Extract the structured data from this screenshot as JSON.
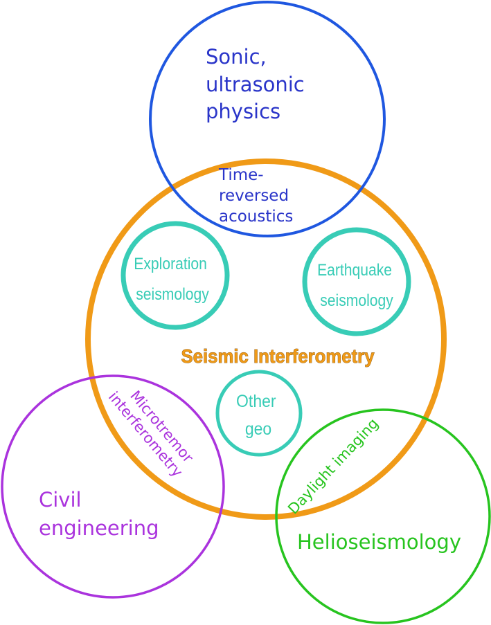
{
  "diagram": {
    "center": {
      "title": "Seismic Interferometry",
      "color": "#f09a17"
    },
    "sonic": {
      "lines": [
        "Sonic,",
        "ultrasonic",
        "physics"
      ],
      "color": "#1f57e0",
      "text_color": "#2a35c9"
    },
    "time_reversed": {
      "lines": [
        "Time-",
        "reversed",
        "acoustics"
      ],
      "color": "#2a35c9"
    },
    "exploration": {
      "lines": [
        "Exploration",
        "seismology"
      ],
      "color": "#38ccb6"
    },
    "earthquake": {
      "lines": [
        "Earthquake",
        "seismology"
      ],
      "color": "#38ccb6"
    },
    "other_geo": {
      "lines": [
        "Other",
        "geo"
      ],
      "color": "#38ccb6"
    },
    "civil": {
      "lines": [
        "Civil",
        "engineering"
      ],
      "color": "#aa33dd"
    },
    "microtremor": {
      "lines": [
        "Microtremor",
        "interferometry"
      ],
      "color": "#aa33dd"
    },
    "helio": {
      "label": "Helioseismology",
      "color": "#27c41f"
    },
    "daylight": {
      "label": "Daylight imaging",
      "color": "#27c41f"
    }
  }
}
